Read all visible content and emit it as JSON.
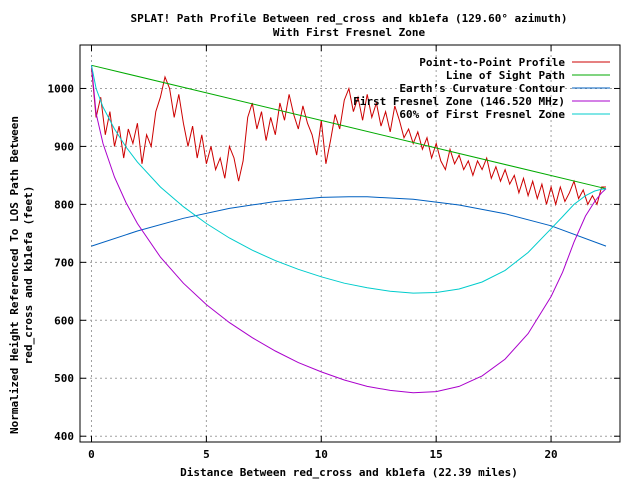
{
  "chart_data": {
    "type": "line",
    "title_lines": [
      "SPLAT! Path Profile Between red_cross and kb1efa (129.60° azimuth)",
      "With First Fresnel Zone"
    ],
    "xlabel": "Distance Between red_cross and kb1efa (22.39 miles)",
    "ylabel_lines": [
      "Normalized Height Referenced To LOS Path Between",
      "red_cross and kb1efa (feet)"
    ],
    "xlim": [
      -0.5,
      23.0
    ],
    "ylim": [
      390,
      1075
    ],
    "x_ticks": [
      0,
      5,
      10,
      15,
      20
    ],
    "y_ticks": [
      400,
      500,
      600,
      700,
      800,
      900,
      1000
    ],
    "grid": true,
    "legend_position": "top-right",
    "series": [
      {
        "name": "Point-to-Point Profile",
        "color": "#cc0000",
        "x": [
          0,
          0.2,
          0.4,
          0.6,
          0.8,
          1.0,
          1.2,
          1.4,
          1.6,
          1.8,
          2.0,
          2.2,
          2.4,
          2.6,
          2.8,
          3.0,
          3.2,
          3.4,
          3.6,
          3.8,
          4.0,
          4.2,
          4.4,
          4.6,
          4.8,
          5.0,
          5.2,
          5.4,
          5.6,
          5.8,
          6.0,
          6.2,
          6.4,
          6.6,
          6.8,
          7.0,
          7.2,
          7.4,
          7.6,
          7.8,
          8.0,
          8.2,
          8.4,
          8.6,
          8.8,
          9.0,
          9.2,
          9.4,
          9.6,
          9.8,
          10.0,
          10.2,
          10.4,
          10.6,
          10.8,
          11.0,
          11.2,
          11.4,
          11.6,
          11.8,
          12.0,
          12.2,
          12.4,
          12.6,
          12.8,
          13.0,
          13.2,
          13.4,
          13.6,
          13.8,
          14.0,
          14.2,
          14.4,
          14.6,
          14.8,
          15.0,
          15.2,
          15.4,
          15.6,
          15.8,
          16.0,
          16.2,
          16.4,
          16.6,
          16.8,
          17.0,
          17.2,
          17.4,
          17.6,
          17.8,
          18.0,
          18.2,
          18.4,
          18.6,
          18.8,
          19.0,
          19.2,
          19.4,
          19.6,
          19.8,
          20.0,
          20.2,
          20.4,
          20.6,
          20.8,
          21.0,
          21.2,
          21.4,
          21.6,
          21.8,
          22.0,
          22.2,
          22.39
        ],
        "values": [
          1035,
          950,
          985,
          920,
          960,
          900,
          935,
          880,
          930,
          905,
          940,
          870,
          920,
          900,
          960,
          985,
          1020,
          1000,
          950,
          990,
          940,
          900,
          935,
          880,
          920,
          870,
          900,
          860,
          880,
          845,
          900,
          880,
          840,
          875,
          950,
          975,
          930,
          960,
          910,
          950,
          920,
          975,
          945,
          990,
          955,
          930,
          970,
          940,
          920,
          885,
          945,
          870,
          910,
          955,
          930,
          980,
          1000,
          960,
          985,
          945,
          990,
          950,
          975,
          935,
          960,
          925,
          970,
          945,
          915,
          930,
          905,
          925,
          895,
          915,
          880,
          905,
          875,
          860,
          895,
          870,
          885,
          860,
          875,
          850,
          875,
          860,
          880,
          845,
          865,
          840,
          860,
          835,
          850,
          820,
          845,
          815,
          840,
          810,
          835,
          800,
          830,
          800,
          830,
          805,
          820,
          840,
          810,
          825,
          800,
          815,
          800,
          830,
          830
        ]
      },
      {
        "name": "Line of Sight Path",
        "color": "#00aa00",
        "x": [
          0,
          22.39
        ],
        "values": [
          1040,
          827
        ]
      },
      {
        "name": "Earth’s Curvature Contour",
        "color": "#0060c0",
        "x": [
          0,
          2,
          4,
          6,
          8,
          10,
          11.2,
          12,
          14,
          16,
          18,
          20,
          22.39
        ],
        "values": [
          728,
          754,
          776,
          793,
          805,
          812,
          813,
          813,
          809,
          799,
          784,
          763,
          728
        ]
      },
      {
        "name": "First Fresnel Zone (146.520 MHz)",
        "color": "#aa00cc",
        "x": [
          0,
          0.2,
          0.5,
          1.0,
          1.5,
          2.0,
          3.0,
          4.0,
          5.0,
          6.0,
          7.0,
          8.0,
          9.0,
          10.0,
          11.0,
          12.0,
          13.0,
          14.0,
          15.0,
          16.0,
          17.0,
          18.0,
          19.0,
          20.0,
          20.5,
          21.0,
          21.5,
          21.9,
          22.2,
          22.39
        ],
        "values": [
          1040,
          957,
          905,
          847,
          803,
          767,
          709,
          664,
          627,
          596,
          570,
          547,
          527,
          511,
          497,
          486,
          479,
          475,
          477,
          486,
          504,
          533,
          577,
          641,
          683,
          735,
          780,
          805,
          820,
          827
        ]
      },
      {
        "name": "60% of First Fresnel Zone",
        "color": "#00cccc",
        "x": [
          0,
          0.2,
          0.5,
          1.0,
          1.5,
          2.0,
          3.0,
          4.0,
          5.0,
          6.0,
          7.0,
          8.0,
          9.0,
          10.0,
          11.0,
          12.0,
          13.0,
          14.0,
          15.0,
          16.0,
          17.0,
          18.0,
          19.0,
          20.0,
          20.5,
          21.0,
          21.5,
          21.9,
          22.2,
          22.39
        ],
        "values": [
          1040,
          1000,
          968,
          930,
          899,
          873,
          830,
          796,
          767,
          742,
          721,
          703,
          688,
          675,
          664,
          656,
          650,
          647,
          648,
          654,
          666,
          686,
          717,
          758,
          779,
          800,
          815,
          823,
          826,
          827
        ]
      }
    ]
  }
}
